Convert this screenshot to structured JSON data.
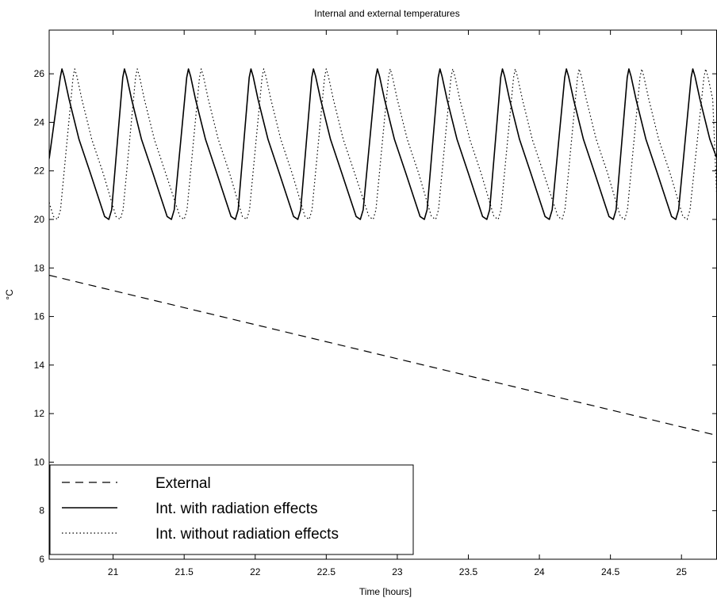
{
  "chart_data": {
    "type": "line",
    "title": "Internal and external temperatures",
    "xlabel": "Time [hours]",
    "ylabel": "°C",
    "xlim": [
      20.55,
      25.25
    ],
    "ylim": [
      6,
      27.8
    ],
    "xticks": [
      21,
      21.5,
      22,
      22.5,
      23,
      23.5,
      24,
      24.5,
      25
    ],
    "xtick_labels": [
      "21",
      "21.5",
      "22",
      "22.5",
      "23",
      "23.5",
      "24",
      "24.5",
      "25"
    ],
    "yticks": [
      6,
      8,
      10,
      12,
      14,
      16,
      18,
      20,
      22,
      24,
      26
    ],
    "ytick_labels": [
      "6",
      "8",
      "10",
      "12",
      "14",
      "16",
      "18",
      "20",
      "22",
      "24",
      "26"
    ],
    "grid": false,
    "legend_position": "bottom-left",
    "series": [
      {
        "name": "External",
        "style": "dashed",
        "x": [
          20.55,
          25.25
        ],
        "y": [
          17.7,
          11.1
        ]
      },
      {
        "name": "Int. with radiation effects",
        "style": "solid",
        "min": 20,
        "max": 26.2,
        "period_hours": 0.443,
        "peak_times": [
          20.64,
          21.08,
          21.53,
          21.97,
          22.41,
          22.86,
          23.3,
          23.74,
          24.19,
          24.63,
          25.08
        ],
        "trough_times": [
          20.97,
          21.41,
          21.86,
          22.3,
          22.74,
          23.19,
          23.63,
          24.07,
          24.52,
          24.96
        ],
        "start_value": 22.5
      },
      {
        "name": "Int. without radiation effects",
        "style": "dotted",
        "min": 20,
        "max": 26.2,
        "period_hours": 0.443,
        "peak_times": [
          20.73,
          21.17,
          21.62,
          22.06,
          22.5,
          22.95,
          23.39,
          23.83,
          24.28,
          24.72,
          25.17
        ],
        "trough_times": [
          20.61,
          21.05,
          21.5,
          21.94,
          22.38,
          22.83,
          23.27,
          23.71,
          24.16,
          24.6,
          25.04
        ],
        "start_value": 20.7
      }
    ]
  }
}
